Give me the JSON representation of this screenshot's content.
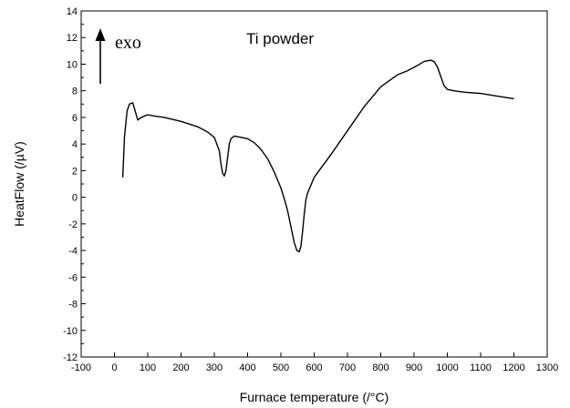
{
  "chart_data": {
    "type": "line",
    "title": "Ti powder",
    "xlabel": "Furnace temperature (/°C)",
    "ylabel": "HeatFlow (/µV)",
    "xlim": [
      -100,
      1300
    ],
    "ylim": [
      -12,
      14
    ],
    "x_ticks": [
      -100,
      0,
      100,
      200,
      300,
      400,
      500,
      600,
      700,
      800,
      900,
      1000,
      1100,
      1200,
      1300
    ],
    "y_ticks": [
      -12,
      -10,
      -8,
      -6,
      -4,
      -2,
      0,
      2,
      4,
      6,
      8,
      10,
      12,
      14
    ],
    "grid": false,
    "annotation": {
      "text": "exo",
      "arrow": "up"
    },
    "series": [
      {
        "name": "",
        "color": "#000000",
        "x": [
          25,
          30,
          38,
          45,
          55,
          62,
          70,
          80,
          90,
          100,
          120,
          150,
          200,
          250,
          280,
          300,
          315,
          320,
          325,
          330,
          335,
          340,
          345,
          350,
          360,
          380,
          400,
          420,
          440,
          460,
          470,
          480,
          490,
          500,
          510,
          520,
          530,
          540,
          548,
          555,
          560,
          565,
          570,
          575,
          580,
          590,
          600,
          650,
          700,
          750,
          800,
          850,
          880,
          910,
          930,
          950,
          960,
          970,
          980,
          990,
          1000,
          1020,
          1050,
          1100,
          1150,
          1200
        ],
        "y": [
          1.5,
          4.5,
          6.5,
          7.0,
          7.1,
          6.5,
          5.8,
          6.0,
          6.1,
          6.2,
          6.1,
          6.0,
          5.7,
          5.3,
          4.9,
          4.5,
          3.5,
          2.5,
          1.8,
          1.6,
          2.0,
          3.0,
          4.0,
          4.4,
          4.6,
          4.5,
          4.4,
          4.1,
          3.6,
          2.9,
          2.4,
          1.9,
          1.3,
          0.7,
          -0.1,
          -1.0,
          -2.2,
          -3.4,
          -4.0,
          -4.1,
          -3.7,
          -2.6,
          -1.3,
          -0.2,
          0.3,
          0.9,
          1.5,
          3.2,
          5.0,
          6.8,
          8.3,
          9.2,
          9.5,
          9.9,
          10.2,
          10.3,
          10.2,
          9.8,
          9.1,
          8.4,
          8.1,
          8.0,
          7.9,
          7.8,
          7.6,
          7.4
        ]
      }
    ]
  }
}
